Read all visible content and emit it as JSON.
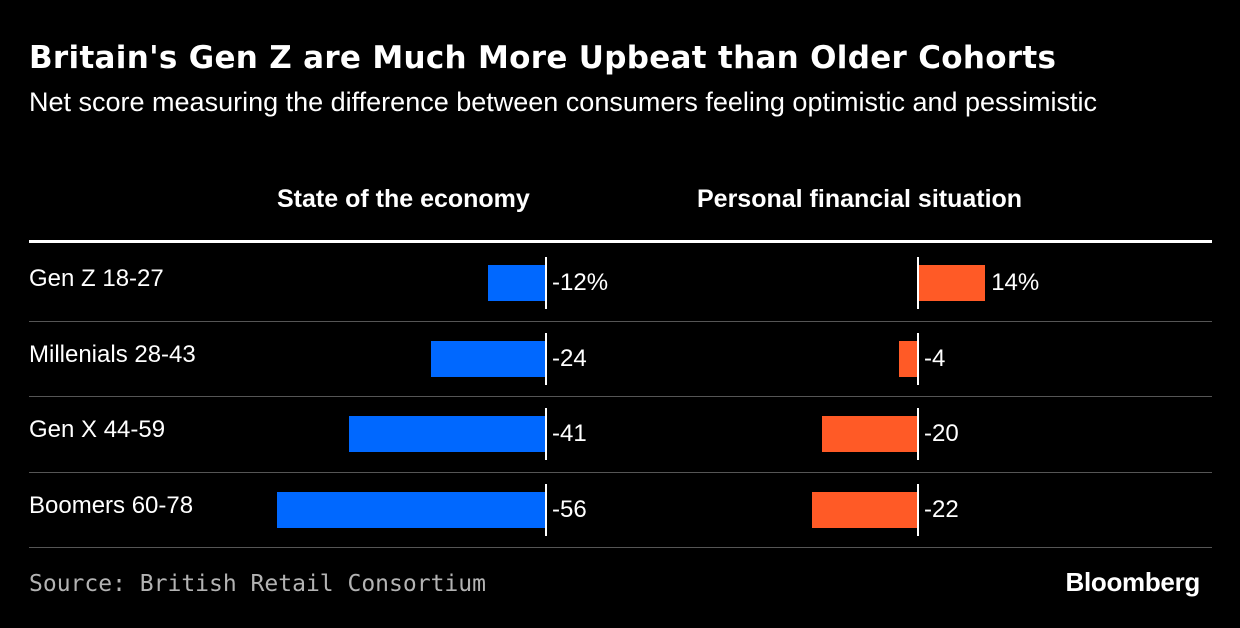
{
  "title": "Britain's Gen Z are Much More Upbeat than Older Cohorts",
  "subtitle": "Net score measuring the difference between consumers feeling optimistic and pessimistic",
  "source": "Source: British Retail Consortium",
  "brand": "Bloomberg",
  "colors": {
    "economy": "#0068ff",
    "personal": "#ff5a26",
    "background": "#000000"
  },
  "chart_data": {
    "type": "bar",
    "orientation": "horizontal",
    "categories": [
      "Gen Z 18-27",
      "Millenials 28-43",
      "Gen X 44-59",
      "Boomers 60-78"
    ],
    "series": [
      {
        "name": "State of the economy",
        "values": [
          -12,
          -24,
          -41,
          -56
        ],
        "labels": [
          "-12%",
          "-24",
          "-41",
          "-56"
        ]
      },
      {
        "name": "Personal financial situation",
        "values": [
          14,
          -4,
          -20,
          -22
        ],
        "labels": [
          "14%",
          "-4",
          "-20",
          "-22"
        ]
      }
    ]
  }
}
